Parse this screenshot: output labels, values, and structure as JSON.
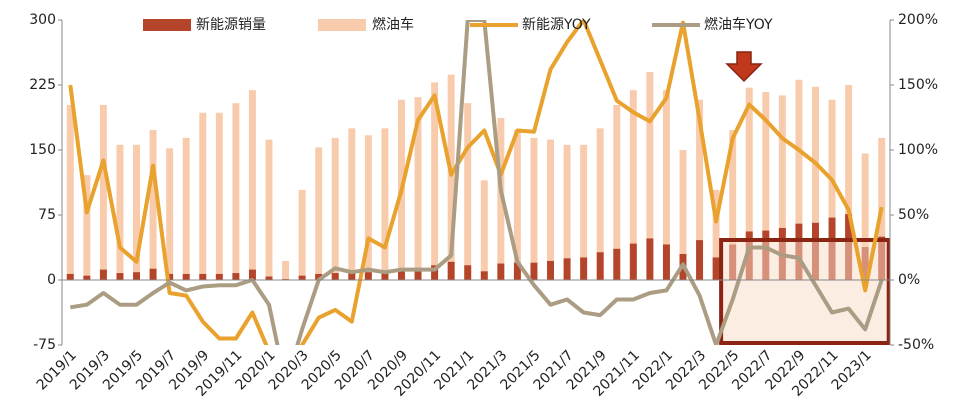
{
  "chart_data": {
    "type": "bar",
    "categories": [
      "2019/1",
      null,
      "2019/3",
      null,
      "2019/5",
      null,
      "2019/7",
      null,
      "2019/9",
      null,
      "2019/11",
      null,
      "2020/1",
      null,
      "2020/3",
      null,
      "2020/5",
      null,
      "2020/7",
      null,
      "2020/9",
      null,
      "2020/11",
      null,
      "2021/1",
      null,
      "2021/3",
      null,
      "2021/5",
      null,
      "2021/7",
      null,
      "2021/9",
      null,
      "2021/11",
      null,
      "2022/1",
      null,
      "2022/3",
      null,
      "2022/5",
      null,
      "2022/7",
      null,
      "2022/9",
      null,
      "2022/11",
      null,
      "2023/1",
      null
    ],
    "series": [
      {
        "name": "新能源销量",
        "type": "bar",
        "color": "#b5452a",
        "values": [
          7,
          5,
          12,
          8,
          9,
          13,
          7,
          7,
          7,
          7,
          8,
          12,
          4,
          1,
          5,
          7,
          8,
          9,
          9,
          10,
          12,
          14,
          17,
          21,
          17,
          10,
          19,
          20,
          20,
          22,
          25,
          26,
          32,
          36,
          42,
          48,
          41,
          30,
          46,
          26,
          41,
          56,
          57,
          60,
          65,
          66,
          72,
          76,
          38,
          50
        ]
      },
      {
        "name": "燃油车",
        "type": "bar",
        "color": "#f8cbad",
        "values": [
          202,
          121,
          202,
          156,
          156,
          173,
          152,
          164,
          193,
          193,
          204,
          219,
          162,
          22,
          104,
          153,
          164,
          175,
          167,
          175,
          208,
          211,
          228,
          237,
          204,
          115,
          187,
          173,
          164,
          162,
          156,
          156,
          175,
          202,
          219,
          240,
          219,
          150,
          208,
          104,
          173,
          222,
          217,
          213,
          231,
          223,
          208,
          225,
          146,
          164
        ]
      },
      {
        "name": "新能源YOY",
        "type": "line",
        "axis": "y2",
        "color": "#e8a22d",
        "values": [
          150,
          52,
          92,
          25,
          14,
          88,
          -10,
          -12,
          -32,
          -45,
          -45,
          -25,
          -55,
          -75,
          -50,
          -29,
          -23,
          -32,
          32,
          25,
          69,
          123,
          142,
          81,
          102,
          115,
          81,
          115,
          114,
          162,
          183,
          200,
          169,
          138,
          129,
          122,
          140,
          198,
          123,
          45,
          109,
          135,
          123,
          109,
          100,
          90,
          77,
          54,
          -8,
          56
        ]
      },
      {
        "name": "燃油车YOY",
        "type": "line",
        "axis": "y2",
        "color": "#ab9d83",
        "values": [
          -21,
          -19,
          -10,
          -19,
          -19,
          -10,
          -2,
          -8,
          -5,
          -4,
          -4,
          0,
          -19,
          -80,
          -38,
          0,
          9,
          6,
          8,
          6,
          8,
          8,
          8,
          19,
          200,
          200,
          69,
          14,
          -4,
          -19,
          -15,
          -25,
          -27,
          -15,
          -15,
          -10,
          -8,
          12,
          -12,
          -50,
          -15,
          25,
          25,
          19,
          17,
          -4,
          -25,
          -22,
          -38,
          0
        ]
      }
    ],
    "ylim": [
      -75,
      300
    ],
    "yticks": [
      -75,
      0,
      75,
      150,
      225,
      300
    ],
    "y2lim": [
      -50,
      200
    ],
    "y2ticks": [
      {
        "value": -50,
        "label": "-50%"
      },
      {
        "value": 0,
        "label": "0%"
      },
      {
        "value": 50,
        "label": "50%"
      },
      {
        "value": 100,
        "label": "100%"
      },
      {
        "value": 150,
        "label": "150%"
      },
      {
        "value": 200,
        "label": "200%"
      }
    ],
    "legend": "top"
  }
}
